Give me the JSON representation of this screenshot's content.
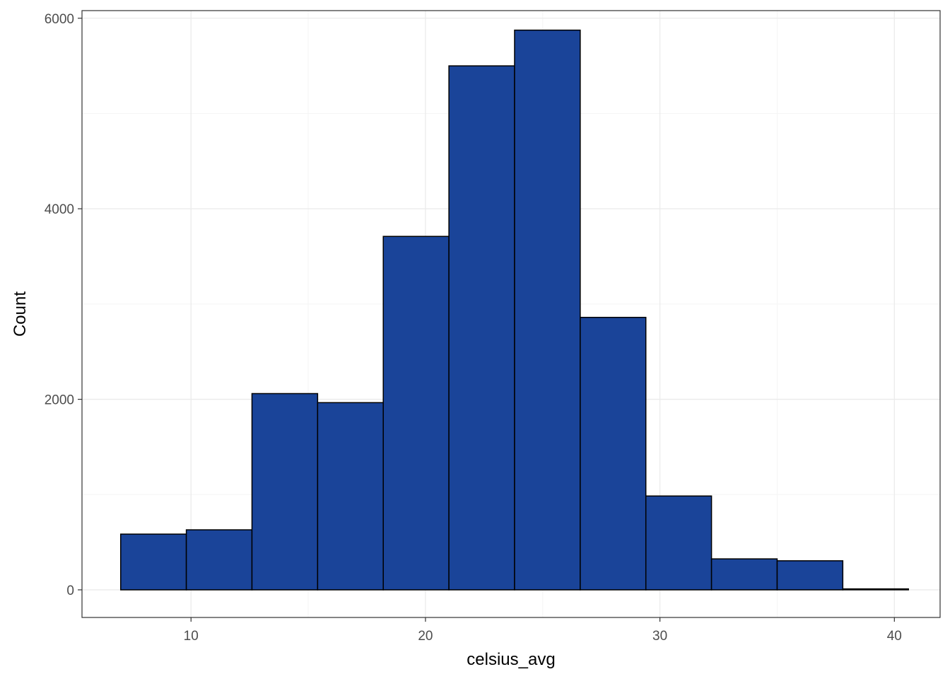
{
  "chart_data": {
    "type": "bar",
    "xlabel": "celsius_avg",
    "ylabel": "Count",
    "xlim": [
      5.35,
      41.95
    ],
    "ylim": [
      -290,
      6080
    ],
    "x_ticks": [
      10,
      20,
      30,
      40
    ],
    "y_ticks": [
      0,
      2000,
      4000,
      6000
    ],
    "x_minor_grid": [
      15,
      25,
      35
    ],
    "y_minor_grid": [
      1000,
      3000,
      5000
    ],
    "grid": true,
    "legend": "none",
    "bins": [
      {
        "x0": 7.0,
        "x1": 9.8,
        "count": 585
      },
      {
        "x0": 9.8,
        "x1": 12.6,
        "count": 630
      },
      {
        "x0": 12.6,
        "x1": 15.4,
        "count": 2060
      },
      {
        "x0": 15.4,
        "x1": 18.2,
        "count": 1965
      },
      {
        "x0": 18.2,
        "x1": 21.0,
        "count": 3710
      },
      {
        "x0": 21.0,
        "x1": 23.8,
        "count": 5500
      },
      {
        "x0": 23.8,
        "x1": 26.6,
        "count": 5875
      },
      {
        "x0": 26.6,
        "x1": 29.4,
        "count": 2860
      },
      {
        "x0": 29.4,
        "x1": 32.2,
        "count": 985
      },
      {
        "x0": 32.2,
        "x1": 35.0,
        "count": 325
      },
      {
        "x0": 35.0,
        "x1": 37.8,
        "count": 305
      },
      {
        "x0": 37.8,
        "x1": 40.6,
        "count": 10
      }
    ],
    "colors": {
      "bar_fill": "#1a4499",
      "bar_stroke": "#000000",
      "grid_major": "#ebebeb",
      "grid_minor": "#f5f5f5",
      "panel_border": "#333333"
    }
  }
}
